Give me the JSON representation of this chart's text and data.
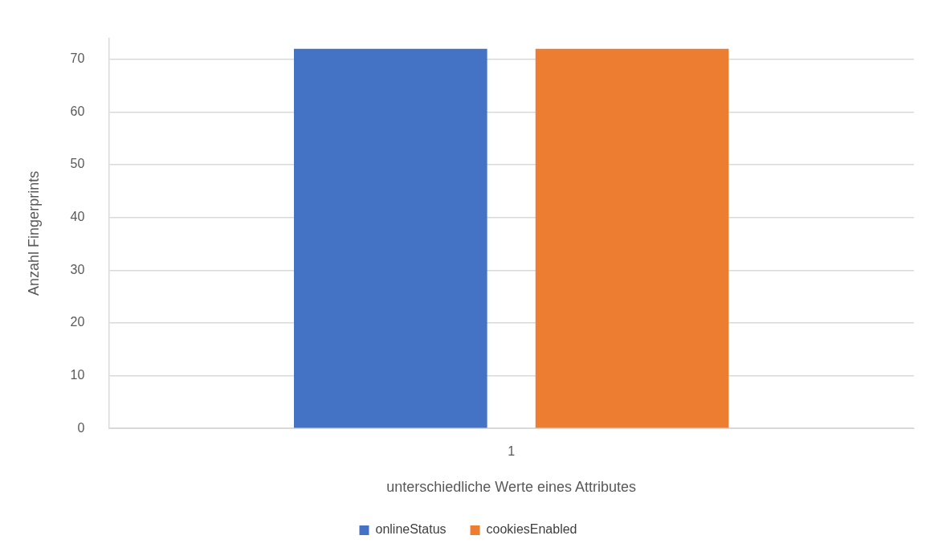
{
  "chart_data": {
    "type": "bar",
    "xlabel": "unterschiedliche Werte eines Attributes",
    "ylabel": "Anzahl Fingerprints",
    "categories": [
      "1"
    ],
    "series": [
      {
        "name": "onlineStatus",
        "color": "#4472c4",
        "values": [
          72
        ]
      },
      {
        "name": "cookiesEnabled",
        "color": "#ed7d31",
        "values": [
          72
        ]
      }
    ],
    "ylim": [
      0,
      74
    ],
    "yticks": [
      0,
      10,
      20,
      30,
      40,
      50,
      60,
      70
    ],
    "grid": "y",
    "legend": "bottom"
  }
}
